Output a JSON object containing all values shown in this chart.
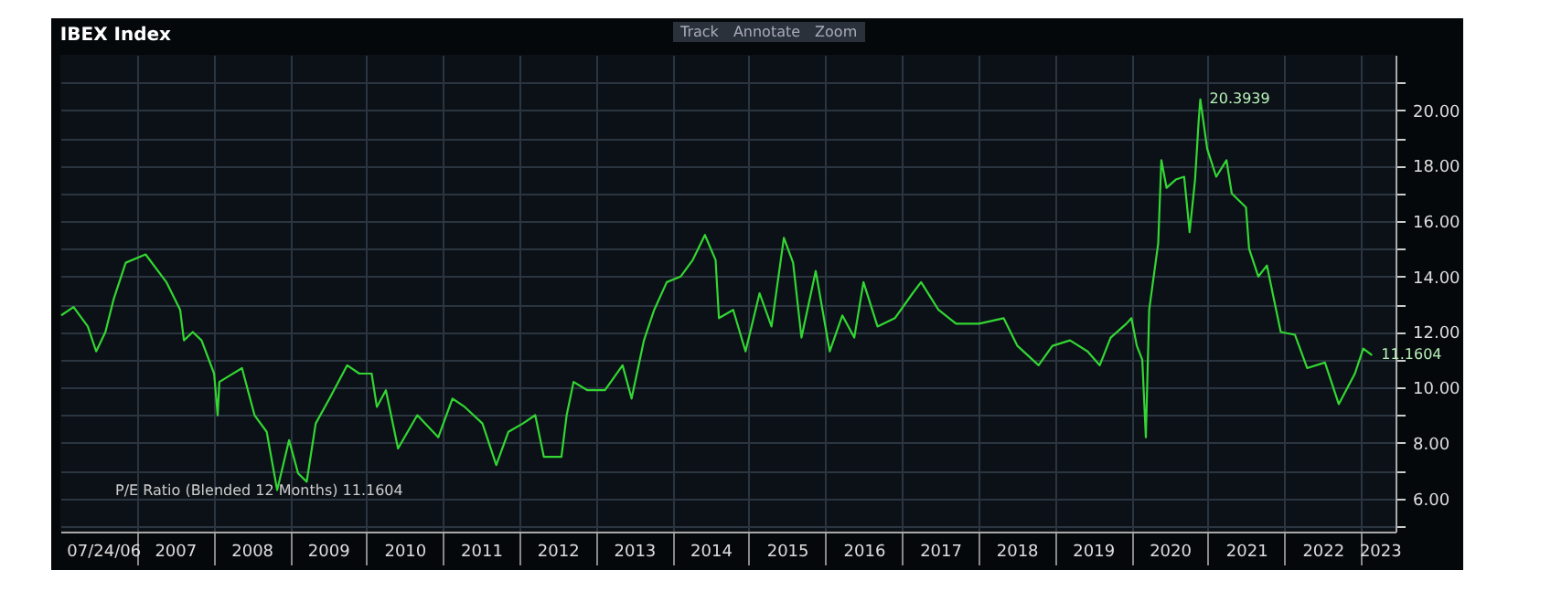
{
  "chart_data": {
    "type": "line",
    "title": "IBEX Index",
    "x": [
      "2006-01-05",
      "2006-03-05",
      "2006-05-12",
      "2006-06-21",
      "2006-08-04",
      "2006-09-13",
      "2006-11-09",
      "2007-02-12",
      "2007-05-22",
      "2007-07-27",
      "2007-08-14",
      "2007-09-25",
      "2007-11-06",
      "2008-01-05",
      "2008-01-22",
      "2008-01-30",
      "2008-05-17",
      "2008-07-16",
      "2008-09-12",
      "2008-11-01",
      "2008-12-28",
      "2009-02-09",
      "2009-03-22",
      "2009-05-04",
      "2009-07-09",
      "2009-10-01",
      "2009-11-28",
      "2010-01-26",
      "2010-02-20",
      "2010-04-04",
      "2010-06-01",
      "2010-09-01",
      "2010-12-10",
      "2011-02-16",
      "2011-04-15",
      "2011-07-09",
      "2011-09-13",
      "2011-11-10",
      "2012-01-18",
      "2012-03-17",
      "2012-04-27",
      "2012-07-20",
      "2012-08-14",
      "2012-09-16",
      "2012-11-21",
      "2013-02-13",
      "2013-05-08",
      "2013-06-20",
      "2013-08-18",
      "2013-10-06",
      "2013-12-05",
      "2014-02-09",
      "2014-04-08",
      "2014-06-05",
      "2014-07-26",
      "2014-08-11",
      "2014-10-18",
      "2014-12-16",
      "2015-02-21",
      "2015-04-19",
      "2015-06-17",
      "2015-07-31",
      "2015-09-09",
      "2015-11-16",
      "2016-01-22",
      "2016-03-22",
      "2016-05-18",
      "2016-07-01",
      "2016-09-06",
      "2016-11-28",
      "2017-02-21",
      "2017-04-02",
      "2017-06-24",
      "2017-09-16",
      "2018-01-04",
      "2018-05-01",
      "2018-07-06",
      "2018-10-15",
      "2018-12-20",
      "2019-03-14",
      "2019-06-06",
      "2019-08-03",
      "2019-09-24",
      "2019-12-08",
      "2020-01-01",
      "2020-01-27",
      "2020-02-22",
      "2020-03-10",
      "2020-03-26",
      "2020-05-08",
      "2020-05-23",
      "2020-06-17",
      "2020-07-31",
      "2020-09-09",
      "2020-10-05",
      "2020-10-31",
      "2020-11-17",
      "2020-11-25",
      "2020-12-28",
      "2021-02-09",
      "2021-03-30",
      "2021-04-24",
      "2021-07-01",
      "2021-07-16",
      "2021-08-29",
      "2021-10-09",
      "2021-11-22",
      "2021-12-14",
      "2022-02-20",
      "2022-04-19",
      "2022-07-13",
      "2022-09-17",
      "2022-12-03",
      "2023-01-12",
      "2023-02-23"
    ],
    "series": [
      {
        "name": "P/E Ratio (Blended 12 Months) 11.1604",
        "color": "#33d633",
        "values": [
          12.6,
          12.9,
          12.2,
          11.3,
          12.0,
          13.2,
          14.5,
          14.8,
          13.8,
          12.8,
          11.7,
          12.0,
          11.7,
          10.5,
          9.0,
          10.2,
          10.7,
          9.0,
          8.4,
          6.3,
          8.1,
          6.9,
          6.6,
          8.7,
          9.6,
          10.8,
          10.5,
          10.5,
          9.3,
          9.9,
          7.8,
          9.0,
          8.2,
          9.6,
          9.3,
          8.7,
          7.2,
          8.4,
          8.7,
          9.0,
          7.5,
          7.5,
          9.0,
          10.2,
          9.9,
          9.9,
          10.8,
          9.6,
          11.7,
          12.8,
          13.8,
          14.0,
          14.6,
          15.5,
          14.6,
          12.5,
          12.8,
          11.3,
          13.4,
          12.2,
          15.4,
          14.5,
          11.8,
          14.2,
          11.3,
          12.6,
          11.8,
          13.8,
          12.2,
          12.5,
          13.4,
          13.8,
          12.8,
          12.3,
          12.3,
          12.5,
          11.5,
          10.8,
          11.5,
          11.7,
          11.3,
          10.8,
          11.8,
          12.3,
          12.5,
          11.5,
          11.0,
          8.2,
          12.8,
          15.2,
          18.2,
          17.2,
          17.5,
          17.6,
          15.6,
          17.5,
          19.6,
          20.3939,
          18.6,
          17.6,
          18.2,
          17.0,
          16.5,
          15.0,
          14.0,
          14.4,
          12.8,
          12.0,
          11.9,
          10.7,
          10.9,
          9.4,
          10.5,
          11.4,
          11.1604
        ]
      }
    ],
    "xlim": [
      "2006-01-01",
      "2023-06-15"
    ],
    "xticks": [
      {
        "value": "2006-07-24",
        "label": "07/24/06"
      },
      {
        "value": "2007-01-01",
        "label": null
      },
      {
        "value": "2007-07-02",
        "label": "2007"
      },
      {
        "value": "2008-01-01",
        "label": null
      },
      {
        "value": "2008-07-02",
        "label": "2008"
      },
      {
        "value": "2009-01-01",
        "label": null
      },
      {
        "value": "2009-07-02",
        "label": "2009"
      },
      {
        "value": "2010-01-01",
        "label": null
      },
      {
        "value": "2010-07-02",
        "label": "2010"
      },
      {
        "value": "2011-01-01",
        "label": null
      },
      {
        "value": "2011-07-02",
        "label": "2011"
      },
      {
        "value": "2012-01-01",
        "label": null
      },
      {
        "value": "2012-07-02",
        "label": "2012"
      },
      {
        "value": "2013-01-01",
        "label": null
      },
      {
        "value": "2013-07-02",
        "label": "2013"
      },
      {
        "value": "2014-01-01",
        "label": null
      },
      {
        "value": "2014-07-02",
        "label": "2014"
      },
      {
        "value": "2015-01-01",
        "label": null
      },
      {
        "value": "2015-07-02",
        "label": "2015"
      },
      {
        "value": "2016-01-01",
        "label": null
      },
      {
        "value": "2016-07-02",
        "label": "2016"
      },
      {
        "value": "2017-01-01",
        "label": null
      },
      {
        "value": "2017-07-02",
        "label": "2017"
      },
      {
        "value": "2018-01-01",
        "label": null
      },
      {
        "value": "2018-07-02",
        "label": "2018"
      },
      {
        "value": "2019-01-01",
        "label": null
      },
      {
        "value": "2019-07-02",
        "label": "2019"
      },
      {
        "value": "2020-01-01",
        "label": null
      },
      {
        "value": "2020-07-02",
        "label": "2020"
      },
      {
        "value": "2021-01-01",
        "label": null
      },
      {
        "value": "2021-07-02",
        "label": "2021"
      },
      {
        "value": "2022-01-01",
        "label": null
      },
      {
        "value": "2022-07-02",
        "label": "2022"
      },
      {
        "value": "2023-01-01",
        "label": null
      },
      {
        "value": "2023-04-01",
        "label": "2023"
      }
    ],
    "ylim": [
      4.8,
      22
    ],
    "yticks": [
      {
        "value": 5,
        "label": null
      },
      {
        "value": 6,
        "label": "6.00"
      },
      {
        "value": 7,
        "label": null
      },
      {
        "value": 8,
        "label": "8.00"
      },
      {
        "value": 9,
        "label": null
      },
      {
        "value": 10,
        "label": "10.00"
      },
      {
        "value": 11,
        "label": null
      },
      {
        "value": 12,
        "label": "12.00"
      },
      {
        "value": 13,
        "label": null
      },
      {
        "value": 14,
        "label": "14.00"
      },
      {
        "value": 15,
        "label": null
      },
      {
        "value": 16,
        "label": "16.00"
      },
      {
        "value": 17,
        "label": null
      },
      {
        "value": 18,
        "label": "18.00"
      },
      {
        "value": 19,
        "label": null
      },
      {
        "value": 20,
        "label": "20.00"
      },
      {
        "value": 21,
        "label": null
      }
    ],
    "annotations": [
      "Track",
      "Annotate",
      "Zoom",
      {
        "text": "20.3939",
        "x": "2020-11-25",
        "y": 20.3939
      },
      {
        "text": "11.1604",
        "x": "2023-02-23",
        "y": 11.1604
      }
    ],
    "grid": true,
    "legend": "bottom left"
  }
}
